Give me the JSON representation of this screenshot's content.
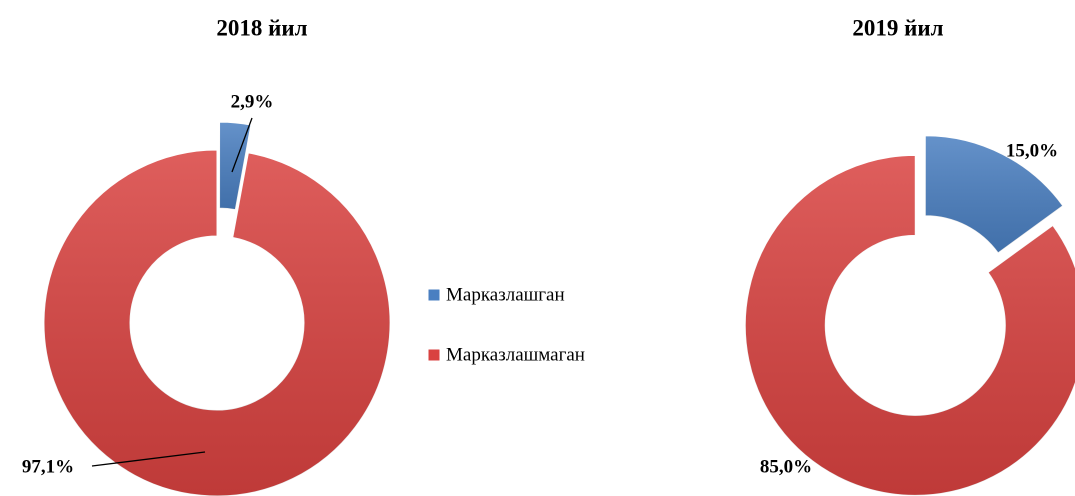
{
  "chart_data": [
    {
      "type": "donut",
      "title": "2018 йил",
      "categories": [
        "Марказлашган",
        "Марказлашмаган"
      ],
      "values": [
        2.9,
        97.1
      ],
      "value_labels": [
        "2,9%",
        "97,1%"
      ],
      "colors": [
        "#4a7fc1",
        "#d94240"
      ]
    },
    {
      "type": "donut",
      "title": "2019 йил",
      "categories": [
        "Марказлашган",
        "Марказлашмаган"
      ],
      "values": [
        15.0,
        85.0
      ],
      "value_labels": [
        "15,0%",
        "85,0%"
      ],
      "colors": [
        "#4a7fc1",
        "#d94240"
      ]
    }
  ]
}
